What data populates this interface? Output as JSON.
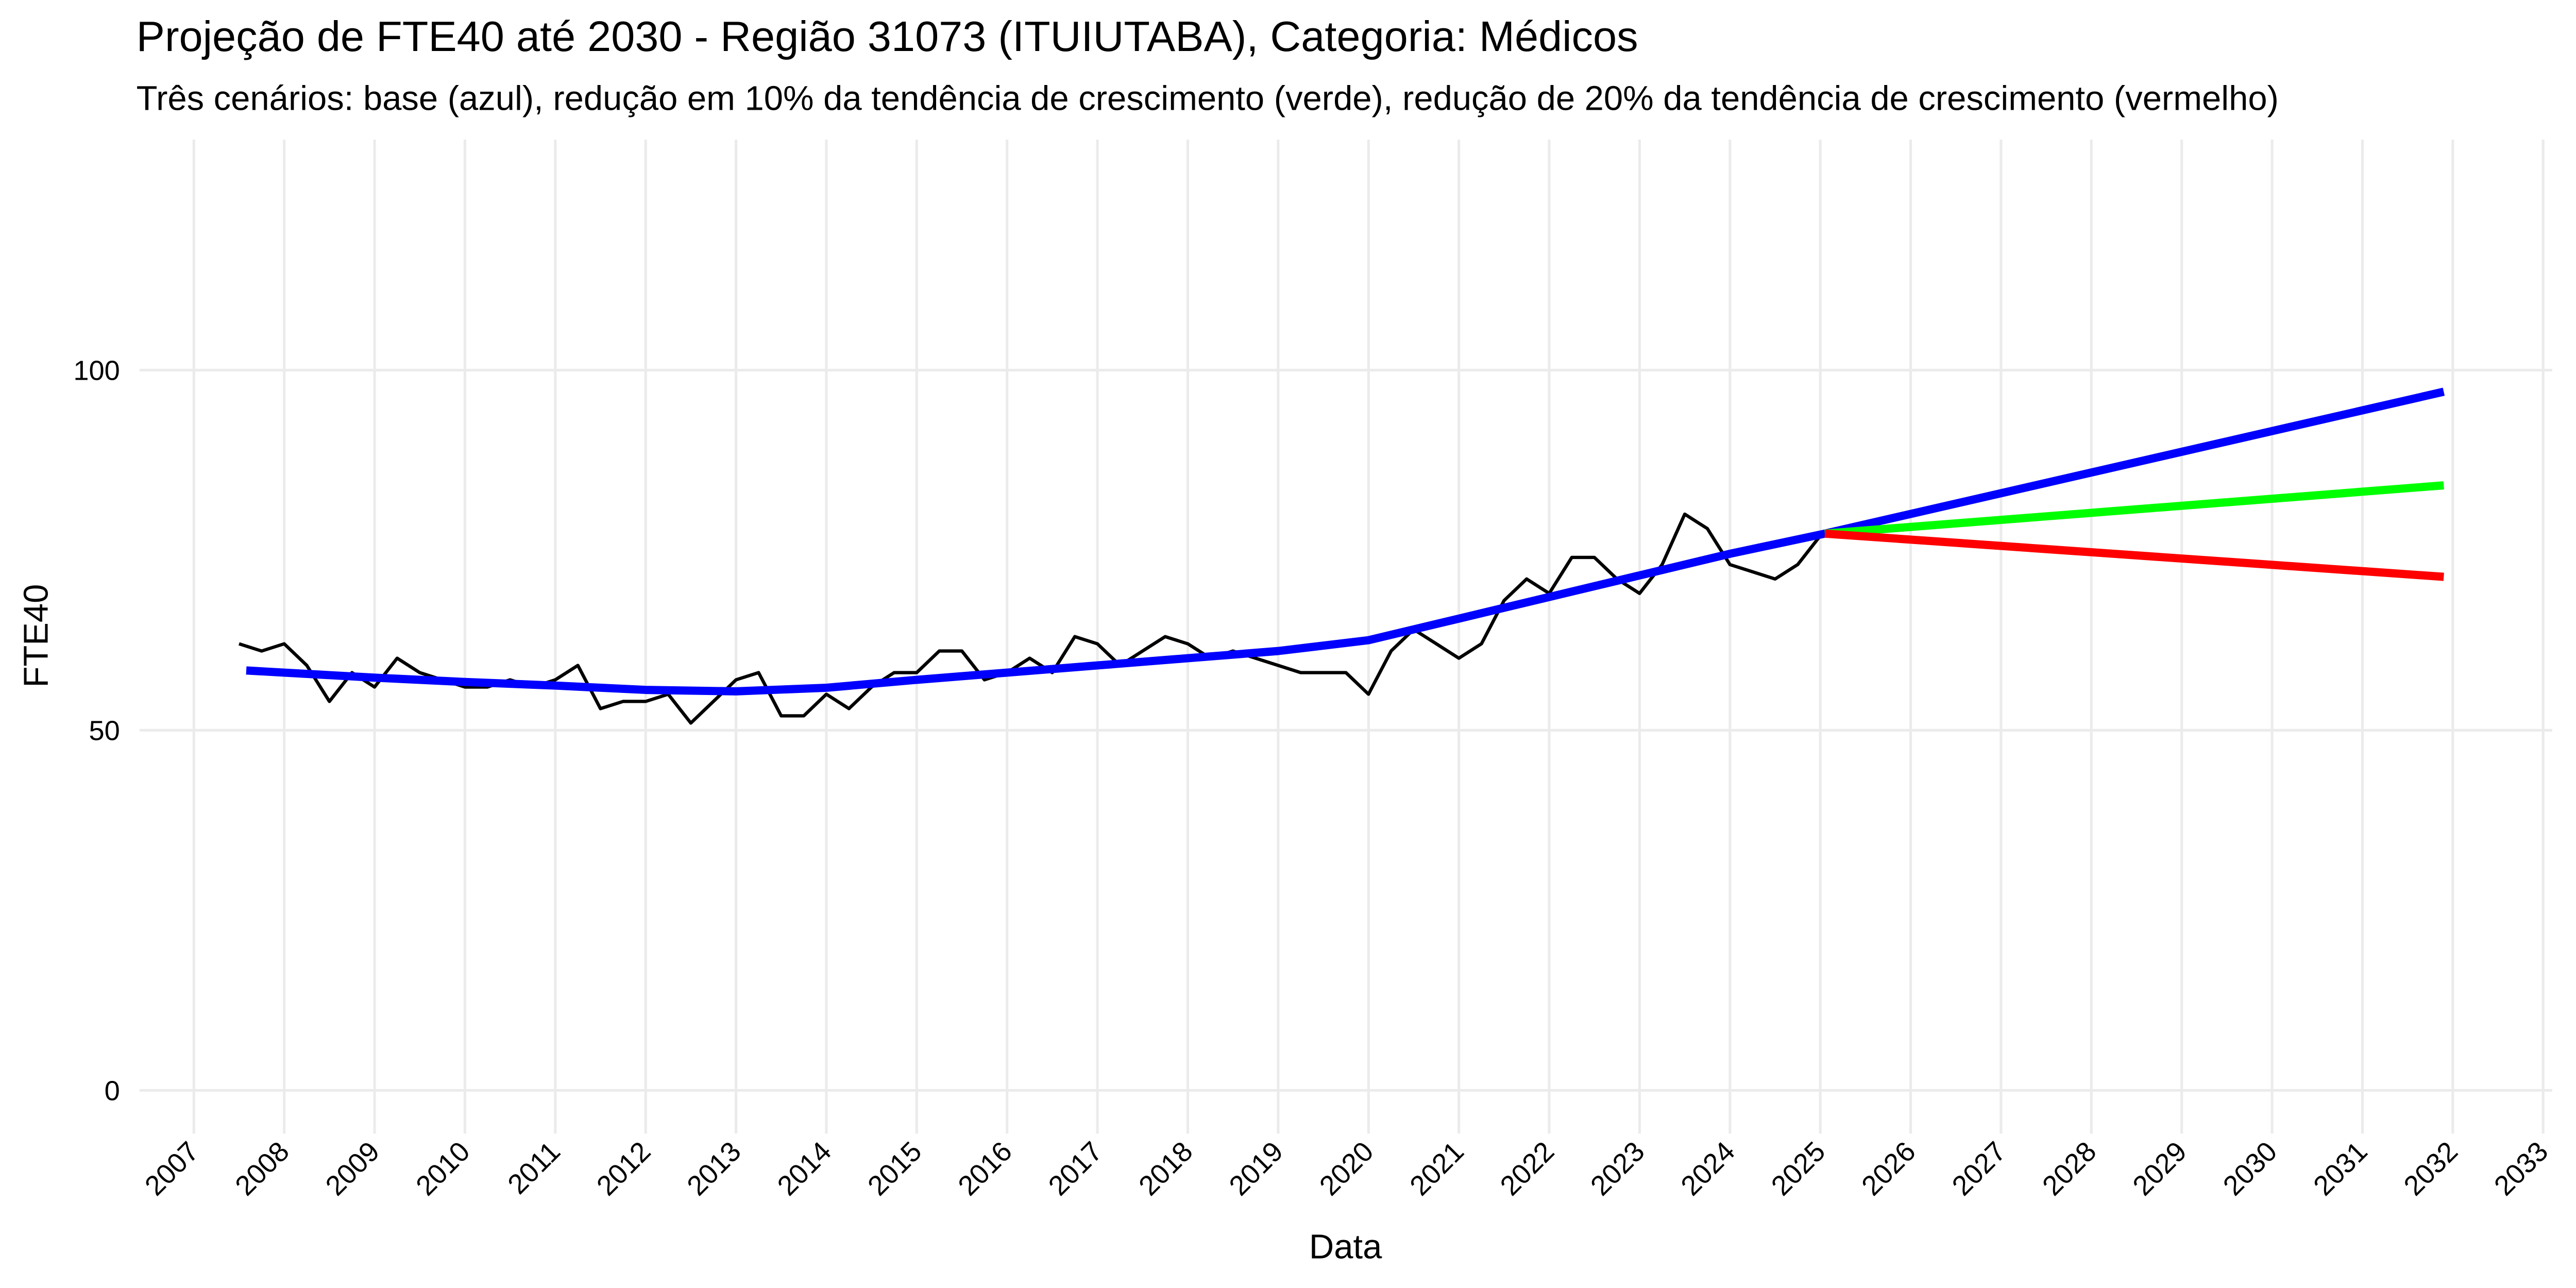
{
  "chart_data": {
    "type": "line",
    "title": "Projeção de FTE40 até 2030 - Região 31073 (ITUIUTABA), Categoria: Médicos",
    "subtitle": "Três cenários: base (azul), redução em 10% da tendência de crescimento (verde), redução de 20% da tendência de crescimento (vermelho)",
    "x_label": "Data",
    "y_label": "FTE40",
    "xlim": [
      2006.4,
      2033.1
    ],
    "ylim": [
      -6,
      132
    ],
    "xticks": [
      2007,
      2008,
      2009,
      2010,
      2011,
      2012,
      2013,
      2014,
      2015,
      2016,
      2017,
      2018,
      2019,
      2020,
      2021,
      2022,
      2023,
      2024,
      2025,
      2026,
      2027,
      2028,
      2029,
      2030,
      2031,
      2032,
      2033
    ],
    "yticks": [
      0,
      50,
      100
    ],
    "grid": true,
    "series": [
      {
        "color": "#000000",
        "x": [
          2007.5,
          2007.75,
          2008.0,
          2008.25,
          2008.5,
          2008.75,
          2009.0,
          2009.25,
          2009.5,
          2009.75,
          2010.0,
          2010.25,
          2010.5,
          2010.75,
          2011.0,
          2011.25,
          2011.5,
          2011.75,
          2012.0,
          2012.25,
          2012.5,
          2012.75,
          2013.0,
          2013.25,
          2013.5,
          2013.75,
          2014.0,
          2014.25,
          2014.5,
          2014.75,
          2015.0,
          2015.25,
          2015.5,
          2015.75,
          2016.0,
          2016.25,
          2016.5,
          2016.75,
          2017.0,
          2017.25,
          2017.5,
          2017.75,
          2018.0,
          2018.25,
          2018.5,
          2018.75,
          2019.0,
          2019.25,
          2019.5,
          2019.75,
          2020.0,
          2020.25,
          2020.5,
          2020.75,
          2021.0,
          2021.25,
          2021.5,
          2021.75,
          2022.0,
          2022.25,
          2022.5,
          2022.75,
          2023.0,
          2023.25,
          2023.5,
          2023.75,
          2024.0,
          2024.25,
          2024.5,
          2024.75,
          2025.0
        ],
        "values": [
          62,
          61,
          62,
          59,
          54,
          58,
          56,
          60,
          58,
          57,
          56,
          56,
          57,
          56,
          57,
          59,
          53,
          54,
          54,
          55,
          51,
          54,
          57,
          58,
          52,
          52,
          55,
          53,
          56,
          58,
          58,
          61,
          61,
          57,
          58,
          60,
          58,
          63,
          62,
          59,
          61,
          63,
          62,
          60,
          61,
          60,
          59,
          58,
          58,
          58,
          55,
          61,
          64,
          62,
          60,
          62,
          68,
          71,
          69,
          74,
          74,
          71,
          69,
          73,
          80,
          78,
          73,
          72,
          71,
          73,
          77
        ]
      },
      {
        "color": "#0000ff",
        "x": [
          2007.58,
          2008,
          2009,
          2010,
          2011,
          2012,
          2013,
          2014,
          2015,
          2016,
          2017,
          2018,
          2019,
          2020,
          2021,
          2022,
          2023,
          2024,
          2025.05,
          2031.9
        ],
        "values": [
          58.3,
          58,
          57.3,
          56.7,
          56.2,
          55.6,
          55.4,
          55.9,
          57,
          58,
          59,
          60,
          61,
          62.5,
          65.5,
          68.5,
          71.5,
          74.5,
          77.3,
          97
        ]
      },
      {
        "color": "#00ff00",
        "x": [
          2025.05,
          2031.9
        ],
        "values": [
          77.3,
          84
        ]
      },
      {
        "color": "#ff0000",
        "x": [
          2025.05,
          2031.9
        ],
        "values": [
          77.3,
          71.3
        ]
      }
    ]
  }
}
